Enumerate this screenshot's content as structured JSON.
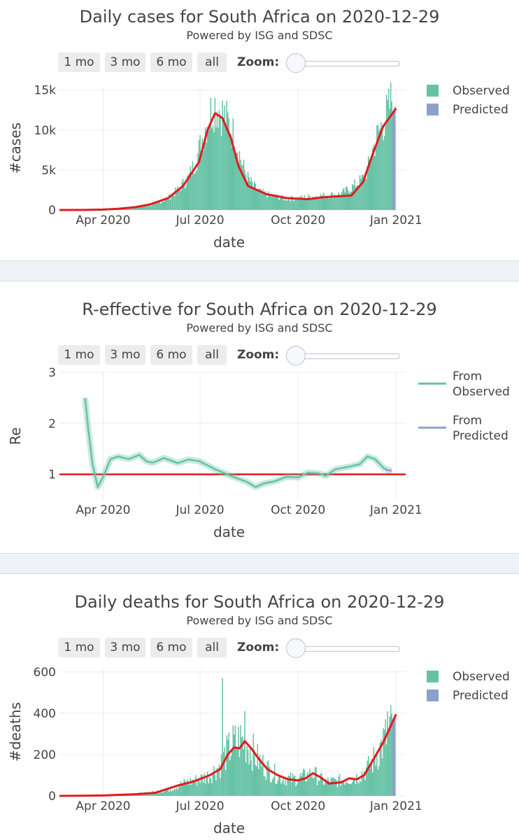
{
  "colors": {
    "observed": "#66c2a5",
    "predicted": "#8da0cb",
    "fit": "#e31a1c",
    "grid": "#eeeeee"
  },
  "range_buttons": [
    "1 mo",
    "3 mo",
    "6 mo",
    "all"
  ],
  "zoom_label": "Zoom:",
  "chart_data": [
    {
      "type": "bar",
      "title": "Daily cases for South Africa on 2020-12-29",
      "subtitle": "Powered by ISG and SDSC",
      "xlabel": "date",
      "ylabel": "#cases",
      "xlim": [
        "2020-02-20",
        "2021-01-10"
      ],
      "ylim": [
        0,
        15500
      ],
      "xticks": [
        {
          "date": "2020-04-01",
          "label": "Apr 2020"
        },
        {
          "date": "2020-07-01",
          "label": "Jul 2020"
        },
        {
          "date": "2020-10-01",
          "label": "Oct 2020"
        },
        {
          "date": "2021-01-01",
          "label": "Jan 2021"
        }
      ],
      "yticks": [
        {
          "value": 0,
          "label": "0"
        },
        {
          "value": 5000,
          "label": "5k"
        },
        {
          "value": 10000,
          "label": "10k"
        },
        {
          "value": 15000,
          "label": "15k"
        }
      ],
      "legend": [
        "Observed",
        "Predicted"
      ],
      "legend_position": "top-right",
      "observed_range": [
        "2020-03-05",
        "2020-12-28"
      ],
      "predicted_range": [
        "2020-12-29",
        "2020-12-31"
      ],
      "observed_points": [
        [
          "2020-03-05",
          0
        ],
        [
          "2020-03-20",
          50
        ],
        [
          "2020-04-10",
          80
        ],
        [
          "2020-05-01",
          300
        ],
        [
          "2020-05-20",
          700
        ],
        [
          "2020-06-01",
          1500
        ],
        [
          "2020-06-10",
          2500
        ],
        [
          "2020-06-20",
          4000
        ],
        [
          "2020-06-28",
          6500
        ],
        [
          "2020-07-05",
          10000
        ],
        [
          "2020-07-10",
          12000
        ],
        [
          "2020-07-15",
          13200
        ],
        [
          "2020-07-20",
          12500
        ],
        [
          "2020-07-25",
          11500
        ],
        [
          "2020-07-31",
          10000
        ],
        [
          "2020-08-05",
          8000
        ],
        [
          "2020-08-10",
          5500
        ],
        [
          "2020-08-15",
          4000
        ],
        [
          "2020-08-20",
          3000
        ],
        [
          "2020-08-27",
          2200
        ],
        [
          "2020-09-05",
          1800
        ],
        [
          "2020-09-20",
          1400
        ],
        [
          "2020-10-01",
          1500
        ],
        [
          "2020-10-15",
          1700
        ],
        [
          "2020-11-01",
          1900
        ],
        [
          "2020-11-10",
          2000
        ],
        [
          "2020-11-20",
          2800
        ],
        [
          "2020-11-30",
          3800
        ],
        [
          "2020-12-05",
          5000
        ],
        [
          "2020-12-10",
          7500
        ],
        [
          "2020-12-15",
          9500
        ],
        [
          "2020-12-20",
          11000
        ],
        [
          "2020-12-25",
          12500
        ],
        [
          "2020-12-28",
          14000
        ]
      ],
      "predicted_points": [
        [
          "2020-12-29",
          12400
        ],
        [
          "2020-12-30",
          12700
        ],
        [
          "2020-12-31",
          13000
        ]
      ],
      "fit_line": [
        [
          "2020-02-20",
          0
        ],
        [
          "2020-03-15",
          10
        ],
        [
          "2020-04-01",
          50
        ],
        [
          "2020-04-15",
          150
        ],
        [
          "2020-05-01",
          350
        ],
        [
          "2020-05-15",
          700
        ],
        [
          "2020-06-01",
          1500
        ],
        [
          "2020-06-15",
          3000
        ],
        [
          "2020-06-30",
          6000
        ],
        [
          "2020-07-08",
          10000
        ],
        [
          "2020-07-15",
          12100
        ],
        [
          "2020-07-22",
          11500
        ],
        [
          "2020-07-30",
          9000
        ],
        [
          "2020-08-06",
          5500
        ],
        [
          "2020-08-15",
          3000
        ],
        [
          "2020-09-01",
          2000
        ],
        [
          "2020-09-20",
          1500
        ],
        [
          "2020-10-10",
          1350
        ],
        [
          "2020-10-25",
          1600
        ],
        [
          "2020-11-05",
          1700
        ],
        [
          "2020-11-20",
          1800
        ],
        [
          "2020-12-01",
          3500
        ],
        [
          "2020-12-10",
          7000
        ],
        [
          "2020-12-20",
          10500
        ],
        [
          "2021-01-01",
          12700
        ]
      ]
    },
    {
      "type": "line",
      "title": "R-effective for South Africa on 2020-12-29",
      "subtitle": "Powered by ISG and SDSC",
      "xlabel": "date",
      "ylabel": "Re",
      "xlim": [
        "2020-02-20",
        "2021-01-10"
      ],
      "ylim": [
        0.5,
        3
      ],
      "xticks": [
        {
          "date": "2020-04-01",
          "label": "Apr 2020"
        },
        {
          "date": "2020-07-01",
          "label": "Jul 2020"
        },
        {
          "date": "2020-10-01",
          "label": "Oct 2020"
        },
        {
          "date": "2021-01-01",
          "label": "Jan 2021"
        }
      ],
      "yticks": [
        {
          "value": 1,
          "label": "1"
        },
        {
          "value": 2,
          "label": "2"
        },
        {
          "value": 3,
          "label": "3"
        }
      ],
      "legend": [
        "From Observed",
        "From Predicted"
      ],
      "legend_position": "top-right",
      "reference_line": 1,
      "series": [
        {
          "name": "From Observed",
          "points": [
            [
              "2020-03-15",
              2.5
            ],
            [
              "2020-03-18",
              1.9
            ],
            [
              "2020-03-22",
              1.2
            ],
            [
              "2020-03-27",
              0.75
            ],
            [
              "2020-04-01",
              0.95
            ],
            [
              "2020-04-08",
              1.3
            ],
            [
              "2020-04-15",
              1.35
            ],
            [
              "2020-04-25",
              1.3
            ],
            [
              "2020-05-05",
              1.38
            ],
            [
              "2020-05-12",
              1.25
            ],
            [
              "2020-05-18",
              1.23
            ],
            [
              "2020-05-28",
              1.32
            ],
            [
              "2020-06-10",
              1.22
            ],
            [
              "2020-06-20",
              1.29
            ],
            [
              "2020-06-30",
              1.26
            ],
            [
              "2020-07-15",
              1.1
            ],
            [
              "2020-08-01",
              0.95
            ],
            [
              "2020-08-14",
              0.85
            ],
            [
              "2020-08-22",
              0.75
            ],
            [
              "2020-08-30",
              0.82
            ],
            [
              "2020-09-10",
              0.87
            ],
            [
              "2020-09-20",
              0.95
            ],
            [
              "2020-10-01",
              0.94
            ],
            [
              "2020-10-10",
              1.03
            ],
            [
              "2020-10-20",
              1.02
            ],
            [
              "2020-10-27",
              0.97
            ],
            [
              "2020-11-05",
              1.1
            ],
            [
              "2020-11-18",
              1.15
            ],
            [
              "2020-11-28",
              1.2
            ],
            [
              "2020-12-05",
              1.35
            ],
            [
              "2020-12-12",
              1.3
            ],
            [
              "2020-12-22",
              1.09
            ]
          ]
        },
        {
          "name": "From Predicted",
          "points": [
            [
              "2020-12-22",
              1.09
            ],
            [
              "2020-12-28",
              1.07
            ]
          ]
        }
      ]
    },
    {
      "type": "bar",
      "title": "Daily deaths for South Africa on 2020-12-29",
      "subtitle": "Powered by ISG and SDSC",
      "xlabel": "date",
      "ylabel": "#deaths",
      "xlim": [
        "2020-02-20",
        "2021-01-10"
      ],
      "ylim": [
        0,
        620
      ],
      "xticks": [
        {
          "date": "2020-04-01",
          "label": "Apr 2020"
        },
        {
          "date": "2020-07-01",
          "label": "Jul 2020"
        },
        {
          "date": "2020-10-01",
          "label": "Oct 2020"
        },
        {
          "date": "2021-01-01",
          "label": "Jan 2021"
        }
      ],
      "yticks": [
        {
          "value": 0,
          "label": "0"
        },
        {
          "value": 200,
          "label": "200"
        },
        {
          "value": 400,
          "label": "400"
        },
        {
          "value": 600,
          "label": "600"
        }
      ],
      "legend": [
        "Observed",
        "Predicted"
      ],
      "legend_position": "top-right",
      "observed_range": [
        "2020-03-27",
        "2020-12-28"
      ],
      "predicted_range": [
        "2020-12-29",
        "2020-12-31"
      ],
      "observed_points": [
        [
          "2020-03-27",
          0
        ],
        [
          "2020-04-20",
          5
        ],
        [
          "2020-05-15",
          15
        ],
        [
          "2020-06-01",
          30
        ],
        [
          "2020-06-15",
          60
        ],
        [
          "2020-06-30",
          80
        ],
        [
          "2020-07-10",
          100
        ],
        [
          "2020-07-20",
          150
        ],
        [
          "2020-07-25",
          200
        ],
        [
          "2020-08-01",
          250
        ],
        [
          "2020-08-08",
          270
        ],
        [
          "2020-08-15",
          250
        ],
        [
          "2020-08-25",
          170
        ],
        [
          "2020-09-05",
          120
        ],
        [
          "2020-09-15",
          90
        ],
        [
          "2020-09-25",
          80
        ],
        [
          "2020-10-05",
          90
        ],
        [
          "2020-10-15",
          110
        ],
        [
          "2020-10-25",
          70
        ],
        [
          "2020-11-05",
          70
        ],
        [
          "2020-11-15",
          80
        ],
        [
          "2020-11-25",
          90
        ],
        [
          "2020-12-05",
          130
        ],
        [
          "2020-12-12",
          180
        ],
        [
          "2020-12-20",
          260
        ],
        [
          "2020-12-28",
          330
        ]
      ],
      "spikes": [
        [
          "2020-07-22",
          570
        ],
        [
          "2020-08-12",
          410
        ],
        [
          "2020-12-24",
          410
        ]
      ],
      "predicted_points": [
        [
          "2020-12-29",
          350
        ],
        [
          "2020-12-30",
          370
        ],
        [
          "2020-12-31",
          390
        ]
      ],
      "fit_line": [
        [
          "2020-02-20",
          0
        ],
        [
          "2020-04-01",
          2
        ],
        [
          "2020-05-01",
          8
        ],
        [
          "2020-05-20",
          15
        ],
        [
          "2020-06-10",
          50
        ],
        [
          "2020-06-25",
          70
        ],
        [
          "2020-07-10",
          100
        ],
        [
          "2020-07-20",
          130
        ],
        [
          "2020-07-27",
          200
        ],
        [
          "2020-08-02",
          235
        ],
        [
          "2020-08-07",
          230
        ],
        [
          "2020-08-12",
          265
        ],
        [
          "2020-08-18",
          230
        ],
        [
          "2020-08-25",
          180
        ],
        [
          "2020-09-02",
          130
        ],
        [
          "2020-09-12",
          100
        ],
        [
          "2020-09-22",
          80
        ],
        [
          "2020-10-01",
          75
        ],
        [
          "2020-10-08",
          85
        ],
        [
          "2020-10-15",
          110
        ],
        [
          "2020-10-22",
          90
        ],
        [
          "2020-10-30",
          60
        ],
        [
          "2020-11-10",
          65
        ],
        [
          "2020-11-18",
          85
        ],
        [
          "2020-11-25",
          80
        ],
        [
          "2020-12-02",
          100
        ],
        [
          "2020-12-10",
          170
        ],
        [
          "2020-12-20",
          260
        ],
        [
          "2021-01-01",
          395
        ]
      ]
    }
  ]
}
